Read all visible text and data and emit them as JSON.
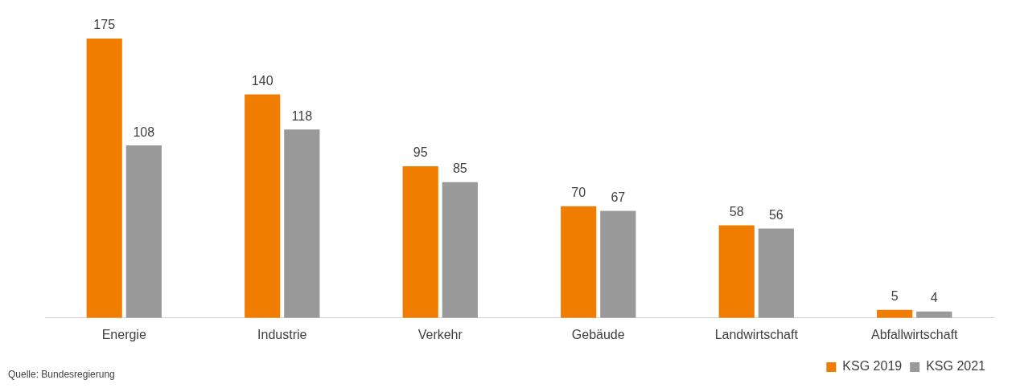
{
  "chart_data": {
    "type": "bar",
    "categories": [
      "Energie",
      "Industrie",
      "Verkehr",
      "Gebäude",
      "Landwirtschaft",
      "Abfallwirtschaft"
    ],
    "series": [
      {
        "name": "KSG 2019",
        "color": "#f07d00",
        "values": [
          175,
          140,
          95,
          70,
          58,
          5
        ]
      },
      {
        "name": "KSG 2021",
        "color": "#999999",
        "values": [
          108,
          118,
          85,
          67,
          56,
          4
        ]
      }
    ],
    "relative": false,
    "data_labels": true,
    "grid": false,
    "legend": "bottom right",
    "annotations": [
      "Quelle: Bundesregierung"
    ]
  }
}
